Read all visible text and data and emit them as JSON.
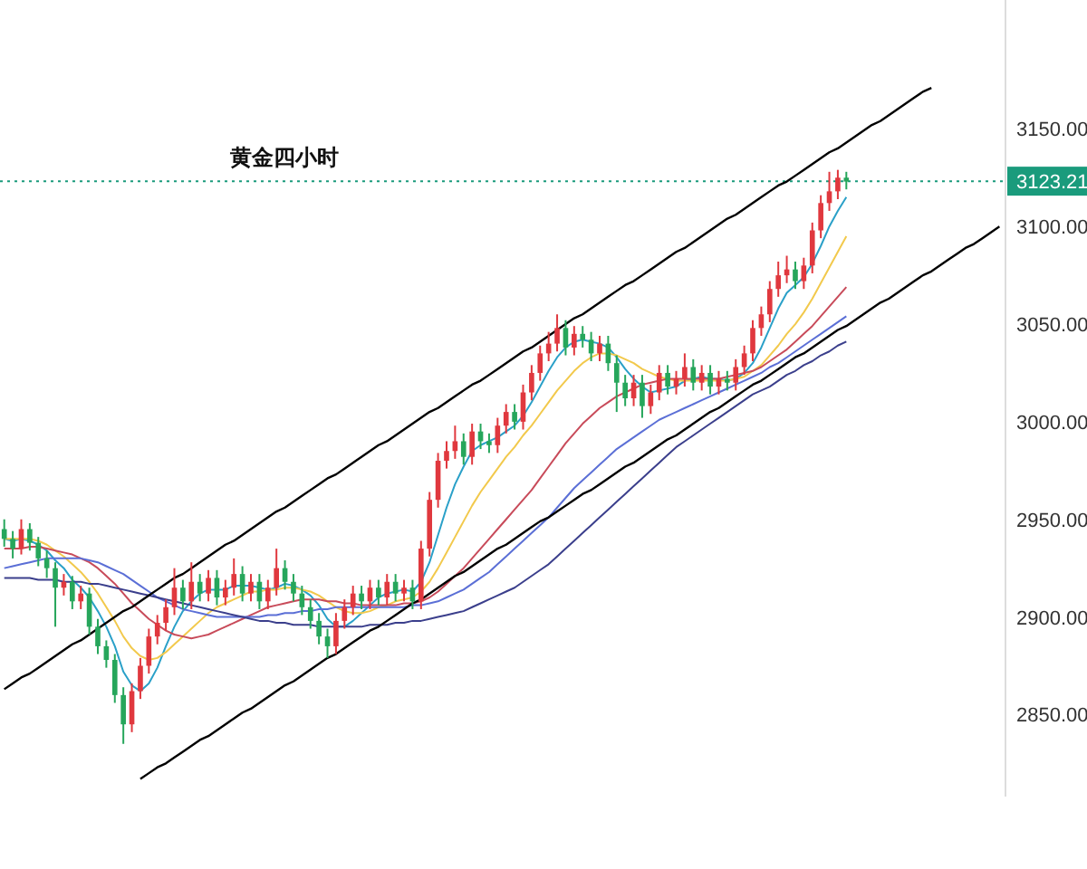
{
  "chart_data": {
    "type": "candlestick",
    "title": "黄金四小时",
    "categories": [
      null,
      null,
      null,
      null,
      null,
      null,
      null,
      null,
      null,
      null,
      null,
      null,
      null,
      null,
      null,
      null,
      null,
      null,
      null,
      null,
      null,
      null,
      null,
      null,
      null,
      null,
      null,
      null,
      null,
      null,
      null,
      null,
      null,
      null,
      null,
      null,
      null,
      null,
      null,
      null,
      null,
      null,
      null,
      null,
      null,
      null,
      null,
      null,
      null,
      null,
      null,
      null,
      null,
      null,
      null,
      null,
      null,
      null,
      null,
      null,
      null,
      null,
      null,
      null,
      null,
      null,
      null,
      null,
      null,
      null,
      null,
      null,
      null,
      null,
      null,
      null,
      null,
      null,
      null,
      null,
      null,
      null,
      null,
      null,
      null,
      null,
      null,
      null,
      null,
      null,
      null,
      null,
      null,
      null,
      null,
      null,
      null,
      null,
      null,
      null,
      null,
      null,
      null,
      null,
      null,
      null,
      null,
      null,
      null,
      null,
      null,
      null,
      null,
      null,
      null,
      null,
      null,
      null
    ],
    "ohlc": [
      [
        2945,
        2950,
        2936,
        2940
      ],
      [
        2940,
        2944,
        2930,
        2935
      ],
      [
        2935,
        2950,
        2932,
        2945
      ],
      [
        2945,
        2948,
        2934,
        2938
      ],
      [
        2938,
        2941,
        2926,
        2930
      ],
      [
        2930,
        2934,
        2920,
        2925
      ],
      [
        2925,
        2928,
        2895,
        2915
      ],
      [
        2915,
        2922,
        2911,
        2918
      ],
      [
        2918,
        2921,
        2904,
        2908
      ],
      [
        2908,
        2916,
        2904,
        2912
      ],
      [
        2912,
        2915,
        2891,
        2895
      ],
      [
        2895,
        2899,
        2881,
        2885
      ],
      [
        2885,
        2888,
        2874,
        2878
      ],
      [
        2878,
        2881,
        2856,
        2860
      ],
      [
        2860,
        2864,
        2835,
        2845
      ],
      [
        2845,
        2866,
        2841,
        2862
      ],
      [
        2862,
        2879,
        2858,
        2875
      ],
      [
        2875,
        2894,
        2871,
        2890
      ],
      [
        2890,
        2901,
        2886,
        2897
      ],
      [
        2897,
        2909,
        2893,
        2905
      ],
      [
        2905,
        2925,
        2901,
        2915
      ],
      [
        2915,
        2919,
        2904,
        2908
      ],
      [
        2908,
        2928,
        2904,
        2918
      ],
      [
        2918,
        2922,
        2908,
        2912
      ],
      [
        2912,
        2924,
        2908,
        2920
      ],
      [
        2920,
        2924,
        2906,
        2910
      ],
      [
        2910,
        2919,
        2906,
        2915
      ],
      [
        2915,
        2930,
        2911,
        2922
      ],
      [
        2922,
        2926,
        2908,
        2912
      ],
      [
        2912,
        2922,
        2908,
        2918
      ],
      [
        2918,
        2922,
        2904,
        2908
      ],
      [
        2908,
        2919,
        2904,
        2915
      ],
      [
        2915,
        2935,
        2911,
        2925
      ],
      [
        2925,
        2929,
        2914,
        2918
      ],
      [
        2918,
        2922,
        2908,
        2912
      ],
      [
        2912,
        2916,
        2901,
        2905
      ],
      [
        2905,
        2909,
        2894,
        2898
      ],
      [
        2898,
        2902,
        2886,
        2890
      ],
      [
        2890,
        2894,
        2879,
        2885
      ],
      [
        2885,
        2902,
        2881,
        2898
      ],
      [
        2898,
        2909,
        2894,
        2905
      ],
      [
        2905,
        2916,
        2901,
        2912
      ],
      [
        2912,
        2916,
        2904,
        2908
      ],
      [
        2908,
        2919,
        2904,
        2915
      ],
      [
        2915,
        2919,
        2906,
        2910
      ],
      [
        2910,
        2922,
        2906,
        2918
      ],
      [
        2918,
        2922,
        2908,
        2912
      ],
      [
        2912,
        2919,
        2908,
        2915
      ],
      [
        2915,
        2919,
        2904,
        2908
      ],
      [
        2908,
        2939,
        2904,
        2935
      ],
      [
        2935,
        2964,
        2931,
        2960
      ],
      [
        2960,
        2984,
        2956,
        2980
      ],
      [
        2980,
        2990,
        2976,
        2985
      ],
      [
        2985,
        2998,
        2981,
        2990
      ],
      [
        2990,
        2994,
        2978,
        2982
      ],
      [
        2982,
        2999,
        2978,
        2995
      ],
      [
        2995,
        2999,
        2986,
        2990
      ],
      [
        2990,
        2994,
        2984,
        2988
      ],
      [
        2988,
        3002,
        2984,
        2998
      ],
      [
        2998,
        3009,
        2994,
        3005
      ],
      [
        3005,
        3009,
        2996,
        3000
      ],
      [
        3000,
        3019,
        2996,
        3015
      ],
      [
        3015,
        3029,
        3011,
        3025
      ],
      [
        3025,
        3039,
        3021,
        3035
      ],
      [
        3035,
        3046,
        3031,
        3040
      ],
      [
        3040,
        3055,
        3036,
        3048
      ],
      [
        3048,
        3052,
        3034,
        3038
      ],
      [
        3038,
        3049,
        3034,
        3045
      ],
      [
        3045,
        3049,
        3038,
        3042
      ],
      [
        3042,
        3046,
        3031,
        3035
      ],
      [
        3035,
        3044,
        3031,
        3040
      ],
      [
        3040,
        3044,
        3026,
        3030
      ],
      [
        3030,
        3034,
        3005,
        3020
      ],
      [
        3020,
        3024,
        3008,
        3012
      ],
      [
        3012,
        3024,
        3008,
        3020
      ],
      [
        3020,
        3024,
        3002,
        3008
      ],
      [
        3008,
        3019,
        3004,
        3015
      ],
      [
        3015,
        3029,
        3011,
        3025
      ],
      [
        3025,
        3029,
        3014,
        3018
      ],
      [
        3018,
        3026,
        3014,
        3022
      ],
      [
        3022,
        3035,
        3018,
        3028
      ],
      [
        3028,
        3032,
        3016,
        3020
      ],
      [
        3020,
        3029,
        3016,
        3025
      ],
      [
        3025,
        3029,
        3014,
        3018
      ],
      [
        3018,
        3026,
        3014,
        3022
      ],
      [
        3022,
        3026,
        3016,
        3020
      ],
      [
        3020,
        3032,
        3016,
        3028
      ],
      [
        3028,
        3039,
        3024,
        3035
      ],
      [
        3035,
        3052,
        3031,
        3048
      ],
      [
        3048,
        3059,
        3044,
        3055
      ],
      [
        3055,
        3072,
        3051,
        3068
      ],
      [
        3068,
        3082,
        3064,
        3075
      ],
      [
        3075,
        3085,
        3071,
        3078
      ],
      [
        3078,
        3082,
        3068,
        3072
      ],
      [
        3072,
        3084,
        3068,
        3080
      ],
      [
        3080,
        3102,
        3076,
        3098
      ],
      [
        3098,
        3116,
        3094,
        3112
      ],
      [
        3112,
        3128,
        3108,
        3118
      ],
      [
        3118,
        3129,
        3114,
        3125
      ],
      [
        3125,
        3128,
        3119,
        3123
      ],
      null,
      null,
      null,
      null,
      null,
      null,
      null,
      null,
      null,
      null,
      null,
      null,
      null,
      null,
      null,
      null,
      null,
      null
    ],
    "series": [
      {
        "type": "line",
        "color": "#2aa0c8",
        "values": [
          2940,
          2939,
          2940,
          2939,
          2937,
          2934,
          2929,
          2925,
          2919,
          2915,
          2910,
          2903,
          2895,
          2885,
          2872,
          2865,
          2862,
          2866,
          2874,
          2885,
          2895,
          2903,
          2908,
          2912,
          2914,
          2914,
          2914,
          2916,
          2916,
          2916,
          2915,
          2914,
          2915,
          2917,
          2916,
          2914,
          2911,
          2906,
          2899,
          2895,
          2895,
          2898,
          2902,
          2906,
          2910,
          2912,
          2913,
          2914,
          2913,
          2918,
          2928,
          2942,
          2956,
          2968,
          2977,
          2985,
          2988,
          2990,
          2992,
          2995,
          2998,
          3003,
          3010,
          3018,
          3026,
          3033,
          3038,
          3041,
          3042,
          3041,
          3040,
          3038,
          3033,
          3027,
          3022,
          3018,
          3015,
          3016,
          3017,
          3018,
          3021,
          3022,
          3023,
          3022,
          3022,
          3021,
          3022,
          3025,
          3030,
          3038,
          3048,
          3058,
          3066,
          3070,
          3074,
          3081,
          3090,
          3100,
          3108,
          3115,
          null,
          null,
          null,
          null,
          null,
          null,
          null,
          null,
          null,
          null,
          null,
          null,
          null,
          null,
          null,
          null,
          null,
          null
        ]
      },
      {
        "type": "line",
        "color": "#f2c94c",
        "values": [
          2940,
          2940,
          2940,
          2940,
          2939,
          2937,
          2934,
          2931,
          2927,
          2923,
          2918,
          2912,
          2905,
          2898,
          2890,
          2884,
          2880,
          2878,
          2879,
          2882,
          2886,
          2890,
          2894,
          2898,
          2902,
          2905,
          2907,
          2909,
          2911,
          2913,
          2913,
          2914,
          2914,
          2915,
          2915,
          2914,
          2913,
          2911,
          2908,
          2905,
          2903,
          2902,
          2902,
          2903,
          2905,
          2906,
          2908,
          2909,
          2910,
          2913,
          2918,
          2925,
          2933,
          2941,
          2949,
          2957,
          2964,
          2970,
          2976,
          2982,
          2987,
          2993,
          2998,
          3004,
          3010,
          3016,
          3021,
          3026,
          3030,
          3033,
          3035,
          3035,
          3034,
          3032,
          3030,
          3027,
          3025,
          3023,
          3022,
          3021,
          3021,
          3021,
          3021,
          3021,
          3021,
          3021,
          3022,
          3023,
          3026,
          3029,
          3034,
          3039,
          3045,
          3050,
          3056,
          3063,
          3071,
          3079,
          3087,
          3095,
          null,
          null,
          null,
          null,
          null,
          null,
          null,
          null,
          null,
          null,
          null,
          null,
          null,
          null,
          null,
          null,
          null,
          null
        ]
      },
      {
        "type": "line",
        "color": "#c84b5a",
        "values": [
          2935,
          2935,
          2935,
          2936,
          2936,
          2935,
          2934,
          2933,
          2932,
          2930,
          2928,
          2925,
          2921,
          2917,
          2912,
          2907,
          2903,
          2899,
          2896,
          2893,
          2891,
          2890,
          2889,
          2890,
          2891,
          2893,
          2895,
          2897,
          2899,
          2901,
          2903,
          2905,
          2906,
          2907,
          2908,
          2909,
          2909,
          2909,
          2908,
          2908,
          2907,
          2907,
          2906,
          2906,
          2906,
          2906,
          2906,
          2907,
          2907,
          2908,
          2910,
          2913,
          2917,
          2921,
          2925,
          2930,
          2935,
          2940,
          2945,
          2950,
          2955,
          2960,
          2965,
          2971,
          2977,
          2983,
          2989,
          2994,
          2999,
          3003,
          3007,
          3010,
          3013,
          3015,
          3017,
          3019,
          3020,
          3021,
          3022,
          3022,
          3022,
          3022,
          3022,
          3022,
          3022,
          3023,
          3024,
          3025,
          3026,
          3028,
          3031,
          3034,
          3037,
          3041,
          3045,
          3049,
          3054,
          3059,
          3064,
          3069,
          null,
          null,
          null,
          null,
          null,
          null,
          null,
          null,
          null,
          null,
          null,
          null,
          null,
          null,
          null,
          null,
          null,
          null
        ]
      },
      {
        "type": "line",
        "color": "#5b6fd6",
        "values": [
          2925,
          2926,
          2927,
          2928,
          2929,
          2930,
          2930,
          2930,
          2930,
          2930,
          2929,
          2928,
          2926,
          2924,
          2922,
          2919,
          2916,
          2913,
          2910,
          2908,
          2906,
          2904,
          2903,
          2902,
          2901,
          2900,
          2900,
          2900,
          2900,
          2900,
          2900,
          2901,
          2901,
          2902,
          2902,
          2903,
          2903,
          2904,
          2904,
          2905,
          2905,
          2905,
          2905,
          2905,
          2905,
          2905,
          2905,
          2905,
          2906,
          2906,
          2907,
          2908,
          2910,
          2912,
          2914,
          2917,
          2920,
          2923,
          2927,
          2931,
          2935,
          2939,
          2943,
          2947,
          2951,
          2956,
          2961,
          2966,
          2970,
          2974,
          2978,
          2982,
          2986,
          2989,
          2992,
          2995,
          2998,
          3001,
          3003,
          3005,
          3007,
          3009,
          3011,
          3013,
          3015,
          3017,
          3019,
          3021,
          3023,
          3025,
          3028,
          3030,
          3033,
          3036,
          3039,
          3042,
          3045,
          3048,
          3051,
          3054,
          null,
          null,
          null,
          null,
          null,
          null,
          null,
          null,
          null,
          null,
          null,
          null,
          null,
          null,
          null,
          null,
          null,
          null
        ]
      },
      {
        "type": "line",
        "color": "#3b3f8c",
        "values": [
          2920,
          2920,
          2920,
          2920,
          2919,
          2919,
          2919,
          2918,
          2918,
          2918,
          2917,
          2917,
          2916,
          2915,
          2914,
          2913,
          2912,
          2911,
          2910,
          2909,
          2908,
          2907,
          2906,
          2905,
          2904,
          2903,
          2902,
          2901,
          2900,
          2899,
          2898,
          2898,
          2897,
          2897,
          2896,
          2896,
          2896,
          2895,
          2895,
          2895,
          2895,
          2895,
          2895,
          2896,
          2896,
          2896,
          2897,
          2897,
          2898,
          2898,
          2899,
          2900,
          2901,
          2902,
          2903,
          2905,
          2907,
          2909,
          2911,
          2913,
          2915,
          2918,
          2921,
          2924,
          2927,
          2931,
          2935,
          2939,
          2943,
          2947,
          2951,
          2955,
          2959,
          2963,
          2967,
          2971,
          2975,
          2979,
          2983,
          2987,
          2990,
          2993,
          2996,
          2999,
          3002,
          3005,
          3008,
          3011,
          3014,
          3016,
          3018,
          3021,
          3024,
          3026,
          3029,
          3031,
          3034,
          3036,
          3039,
          3041,
          null,
          null,
          null,
          null,
          null,
          null,
          null,
          null,
          null,
          null,
          null,
          null,
          null,
          null,
          null,
          null,
          null,
          null
        ]
      },
      {
        "type": "line",
        "color": "#000000",
        "values": [
          2863,
          2866,
          2869,
          2871,
          2874,
          2877,
          2880,
          2883,
          2886,
          2888,
          2891,
          2894,
          2897,
          2900,
          2903,
          2905,
          2908,
          2911,
          2914,
          2917,
          2920,
          2922,
          2925,
          2928,
          2931,
          2934,
          2937,
          2939,
          2942,
          2945,
          2948,
          2951,
          2954,
          2956,
          2959,
          2962,
          2965,
          2968,
          2971,
          2973,
          2976,
          2979,
          2982,
          2985,
          2988,
          2990,
          2993,
          2996,
          2999,
          3002,
          3005,
          3007,
          3010,
          3013,
          3016,
          3019,
          3021,
          3024,
          3027,
          3030,
          3033,
          3036,
          3038,
          3041,
          3044,
          3047,
          3050,
          3053,
          3055,
          3058,
          3061,
          3064,
          3067,
          3070,
          3072,
          3075,
          3078,
          3081,
          3084,
          3087,
          3089,
          3092,
          3095,
          3098,
          3101,
          3104,
          3106,
          3109,
          3112,
          3115,
          3118,
          3121,
          3123,
          3126,
          3129,
          3132,
          3135,
          3138,
          3140,
          3143,
          3146,
          3149,
          3152,
          3154,
          3157,
          3160,
          3163,
          3166,
          3169,
          3171,
          null,
          null,
          null,
          null,
          null,
          null,
          null,
          null
        ]
      },
      {
        "type": "line",
        "color": "#000000",
        "values": [
          null,
          null,
          null,
          null,
          null,
          null,
          null,
          null,
          null,
          null,
          null,
          null,
          null,
          null,
          null,
          null,
          2817,
          2820,
          2823,
          2825,
          2828,
          2831,
          2834,
          2837,
          2839,
          2842,
          2845,
          2848,
          2851,
          2853,
          2856,
          2859,
          2862,
          2865,
          2867,
          2870,
          2873,
          2876,
          2879,
          2881,
          2884,
          2887,
          2890,
          2893,
          2895,
          2898,
          2901,
          2904,
          2907,
          2909,
          2912,
          2915,
          2918,
          2921,
          2923,
          2926,
          2929,
          2932,
          2935,
          2937,
          2940,
          2943,
          2946,
          2949,
          2951,
          2954,
          2957,
          2960,
          2963,
          2965,
          2968,
          2971,
          2974,
          2977,
          2979,
          2982,
          2985,
          2988,
          2991,
          2993,
          2996,
          2999,
          3002,
          3005,
          3007,
          3010,
          3013,
          3016,
          3019,
          3021,
          3024,
          3027,
          3030,
          3033,
          3035,
          3038,
          3041,
          3044,
          3047,
          3049,
          3052,
          3055,
          3058,
          3061,
          3063,
          3066,
          3069,
          3072,
          3075,
          3077,
          3080,
          3083,
          3086,
          3089,
          3091,
          3094,
          3097,
          3100
        ]
      }
    ],
    "ylim": [
      2808,
      3216
    ],
    "yticks": [
      {
        "value": 2850,
        "label": "2850.00"
      },
      {
        "value": 2900,
        "label": "2900.00"
      },
      {
        "value": 2950,
        "label": "2950.00"
      },
      {
        "value": 3000,
        "label": "3000.00"
      },
      {
        "value": 3050,
        "label": "3050.00"
      },
      {
        "value": 3100,
        "label": "3100.00"
      },
      {
        "value": 3150,
        "label": "3150.00"
      }
    ],
    "tick_labels": "y",
    "ref_lines": [
      {
        "axis": "y",
        "value": 3123.21,
        "label": "3123.21",
        "color": "#1a9b7c",
        "line_style": "dotted"
      }
    ]
  }
}
